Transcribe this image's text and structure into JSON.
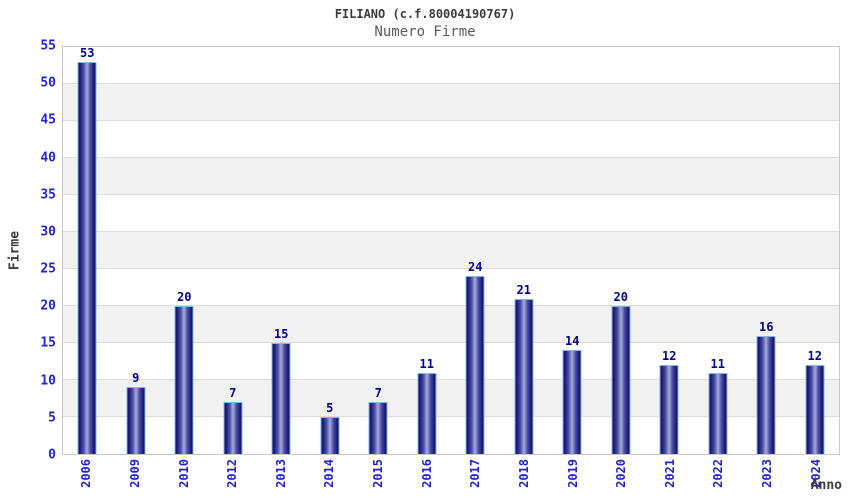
{
  "header": {
    "title": "FILIANO (c.f.80004190767)",
    "subtitle": "Numero Firme"
  },
  "chart_data": {
    "type": "bar",
    "title": "FILIANO (c.f.80004190767)",
    "subtitle": "Numero Firme",
    "xlabel": "Anno",
    "ylabel": "Firme",
    "categories": [
      "2006",
      "2009",
      "2010",
      "2012",
      "2013",
      "2014",
      "2015",
      "2016",
      "2017",
      "2018",
      "2019",
      "2020",
      "2021",
      "2022",
      "2023",
      "2024"
    ],
    "values": [
      53,
      9,
      20,
      7,
      15,
      5,
      7,
      11,
      24,
      21,
      14,
      20,
      12,
      11,
      16,
      12
    ],
    "ylim": [
      0,
      55
    ],
    "ytick_step": 5,
    "grid": "horizontal-bands-alternating",
    "legend": "none",
    "colors": {
      "bar_dark": "#10106a",
      "bar_light": "#a7abdc",
      "bar_border": "#82b6e4",
      "tick_label": "#2323cd",
      "value_label": "#00008b",
      "band_gray": "#f1f1f1",
      "gridline": "#dcdcdc",
      "plot_border": "#c9c9c9",
      "title_text": "#3c3c3c",
      "subtitle_text": "#5a5a5a"
    }
  }
}
